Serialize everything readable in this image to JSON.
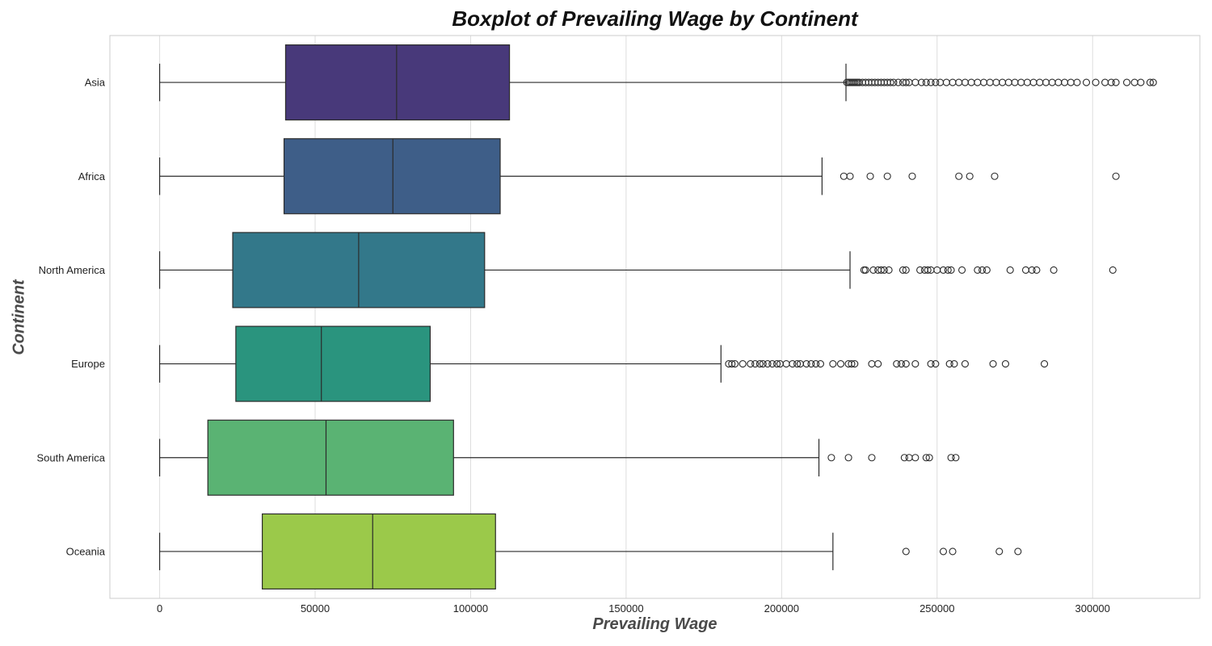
{
  "chart_data": {
    "type": "boxplot",
    "title": "Boxplot of Prevailing Wage by Continent",
    "xlabel": "Prevailing Wage",
    "ylabel": "Continent",
    "xlim": [
      -16000,
      334500
    ],
    "xticks": [
      0,
      50000,
      100000,
      150000,
      200000,
      250000,
      300000
    ],
    "grid": "vertical",
    "categories": [
      "Asia",
      "Africa",
      "North America",
      "Europe",
      "South America",
      "Oceania"
    ],
    "colors": [
      "#48397a",
      "#3e5e88",
      "#33788a",
      "#2a947e",
      "#5ab373",
      "#9bc94a"
    ],
    "series": [
      {
        "category": "Asia",
        "whisker_low": 0,
        "q1": 40500,
        "median": 76200,
        "q3": 112500,
        "whisker_high": 220700,
        "outliers": [
          221000,
          221500,
          222000,
          222500,
          223000,
          223500,
          224000,
          224500,
          225000,
          226000,
          227000,
          228000,
          229000,
          230000,
          231000,
          232000,
          233000,
          234000,
          235000,
          236000,
          237500,
          239000,
          240000,
          241000,
          243000,
          245000,
          246500,
          248000,
          249500,
          251000,
          253000,
          255000,
          257000,
          259000,
          261000,
          263000,
          265000,
          267000,
          269000,
          271000,
          273000,
          275000,
          277000,
          279000,
          281000,
          283000,
          285000,
          287000,
          289000,
          291000,
          293000,
          295000,
          298000,
          301000,
          304000,
          306000,
          307500,
          311000,
          313500,
          315500,
          318500,
          319500
        ]
      },
      {
        "category": "Africa",
        "whisker_low": 0,
        "q1": 40000,
        "median": 75000,
        "q3": 109500,
        "whisker_high": 213000,
        "outliers": [
          220000,
          222000,
          228500,
          234000,
          242000,
          257000,
          260500,
          268500,
          307500
        ]
      },
      {
        "category": "North America",
        "whisker_low": 0,
        "q1": 23500,
        "median": 64000,
        "q3": 104500,
        "whisker_high": 222000,
        "outliers": [
          226500,
          227000,
          229500,
          231000,
          232000,
          233000,
          234500,
          239000,
          240000,
          244500,
          246000,
          247000,
          248000,
          250000,
          252000,
          253500,
          254500,
          258000,
          263000,
          264500,
          266000,
          273500,
          278500,
          280500,
          282000,
          287500,
          306500
        ]
      },
      {
        "category": "Europe",
        "whisker_low": 0,
        "q1": 24500,
        "median": 52000,
        "q3": 87000,
        "whisker_high": 180500,
        "outliers": [
          183000,
          184000,
          185000,
          187500,
          190000,
          191500,
          193000,
          194000,
          195500,
          197000,
          198500,
          199500,
          201500,
          203500,
          205000,
          206000,
          208000,
          209500,
          211000,
          212500,
          216500,
          219000,
          221500,
          222500,
          223500,
          229000,
          231000,
          237000,
          238500,
          240000,
          243000,
          248000,
          249500,
          254000,
          255500,
          259000,
          268000,
          272000,
          284500
        ]
      },
      {
        "category": "South America",
        "whisker_low": 0,
        "q1": 15500,
        "median": 53500,
        "q3": 94500,
        "whisker_high": 212000,
        "outliers": [
          216000,
          221500,
          229000,
          239500,
          241000,
          243000,
          246500,
          247500,
          254500,
          256000
        ]
      },
      {
        "category": "Oceania",
        "whisker_low": 0,
        "q1": 33000,
        "median": 68500,
        "q3": 108000,
        "whisker_high": 216500,
        "outliers": [
          240000,
          252000,
          255000,
          270000,
          276000
        ]
      }
    ]
  }
}
